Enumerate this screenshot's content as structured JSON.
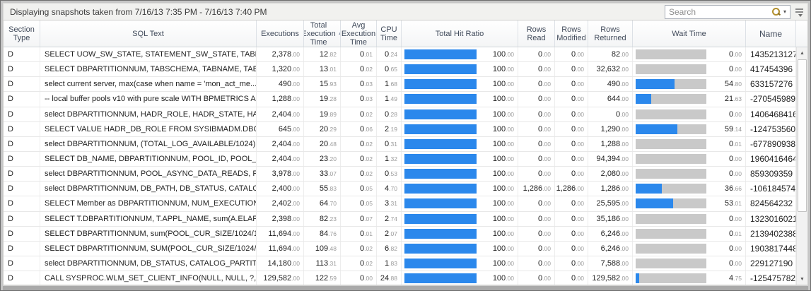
{
  "window": {
    "status_text": "Displaying snapshots taken from 7/16/13 7:35 PM - 7/16/13 7:40 PM"
  },
  "search": {
    "placeholder": "Search"
  },
  "colors": {
    "bar_blue": "#2b88ec",
    "bar_track_gray": "#c9c9c9",
    "header_text": "#404a5a"
  },
  "icons": {
    "search_magnifier": "magnifier-icon",
    "search_dropdown": "▾",
    "sort_ascending": "▲",
    "scroll_up": "▲",
    "scroll_down": "▼"
  },
  "table": {
    "columns": [
      {
        "key": "section_type",
        "label": "Section Type",
        "align": "left"
      },
      {
        "key": "sql_text",
        "label": "SQL Text",
        "align": "left"
      },
      {
        "key": "executions",
        "label": "Executions",
        "align": "right",
        "numeric": true
      },
      {
        "key": "total_execution_time",
        "label": "Total Execution Time",
        "align": "right",
        "numeric": true,
        "sort": "asc"
      },
      {
        "key": "avg_execution_time",
        "label": "Avg Execution Time",
        "align": "right",
        "numeric": true
      },
      {
        "key": "cpu_time",
        "label": "CPU Time",
        "align": "right",
        "numeric": true
      },
      {
        "key": "total_hit_ratio",
        "label": "Total Hit Ratio",
        "type": "bar"
      },
      {
        "key": "rows_read",
        "label": "Rows Read",
        "align": "right",
        "numeric": true
      },
      {
        "key": "rows_modified",
        "label": "Rows Modified",
        "align": "right",
        "numeric": true
      },
      {
        "key": "rows_returned",
        "label": "Rows Returned",
        "align": "right",
        "numeric": true
      },
      {
        "key": "wait_time",
        "label": "Wait Time",
        "type": "bar"
      },
      {
        "key": "name",
        "label": "Name",
        "align": "left"
      }
    ],
    "rows": [
      {
        "section_type": "D",
        "sql_text": "SELECT UOW_SW_STATE, STATEMENT_SW_STATE, TABLE_...",
        "executions": "2,378.00",
        "total_execution_time": "12.82",
        "avg_execution_time": "0.01",
        "cpu_time": "0.24",
        "total_hit_ratio": "100.00",
        "rows_read": "0.00",
        "rows_modified": "0.00",
        "rows_returned": "82.00",
        "wait_time": "0.00",
        "name": "1435213127"
      },
      {
        "section_type": "D",
        "sql_text": "SELECT DBPARTITIONNUM, TABSCHEMA, TABNAME, TAB_T...",
        "executions": "1,320.00",
        "total_execution_time": "13.01",
        "avg_execution_time": "0.02",
        "cpu_time": "0.65",
        "total_hit_ratio": "100.00",
        "rows_read": "0.00",
        "rows_modified": "0.00",
        "rows_returned": "32,632.00",
        "wait_time": "0.00",
        "name": "417454396"
      },
      {
        "section_type": "D",
        "sql_text": "select current server, max(case when name = 'mon_act_me...",
        "executions": "490.00",
        "total_execution_time": "15.93",
        "avg_execution_time": "0.03",
        "cpu_time": "1.68",
        "total_hit_ratio": "100.00",
        "rows_read": "0.00",
        "rows_modified": "0.00",
        "rows_returned": "490.00",
        "wait_time": "54.80",
        "name": "633157276"
      },
      {
        "section_type": "D",
        "sql_text": "-- local buffer pools v10 with pure scale WITH BPMETRICS A...",
        "executions": "1,288.00",
        "total_execution_time": "19.28",
        "avg_execution_time": "0.03",
        "cpu_time": "1.49",
        "total_hit_ratio": "100.00",
        "rows_read": "0.00",
        "rows_modified": "0.00",
        "rows_returned": "644.00",
        "wait_time": "21.63",
        "name": "-270545989"
      },
      {
        "section_type": "D",
        "sql_text": "select DBPARTITIONNUM, HADR_ROLE, HADR_STATE, HAD...",
        "executions": "2,404.00",
        "total_execution_time": "19.89",
        "avg_execution_time": "0.02",
        "cpu_time": "0.28",
        "total_hit_ratio": "100.00",
        "rows_read": "0.00",
        "rows_modified": "0.00",
        "rows_returned": "0.00",
        "wait_time": "0.00",
        "name": "1406468416"
      },
      {
        "section_type": "D",
        "sql_text": "SELECT VALUE HADR_DB_ROLE FROM SYSIBMADM.DBCFG ...",
        "executions": "645.00",
        "total_execution_time": "20.29",
        "avg_execution_time": "0.06",
        "cpu_time": "2.19",
        "total_hit_ratio": "100.00",
        "rows_read": "0.00",
        "rows_modified": "0.00",
        "rows_returned": "1,290.00",
        "wait_time": "59.14",
        "name": "-1247535607"
      },
      {
        "section_type": "D",
        "sql_text": "select DBPARTITIONNUM, (TOTAL_LOG_AVAILABLE/1024) a...",
        "executions": "2,404.00",
        "total_execution_time": "20.48",
        "avg_execution_time": "0.02",
        "cpu_time": "0.31",
        "total_hit_ratio": "100.00",
        "rows_read": "0.00",
        "rows_modified": "0.00",
        "rows_returned": "1,288.00",
        "wait_time": "0.01",
        "name": "-677890938"
      },
      {
        "section_type": "D",
        "sql_text": "SELECT DB_NAME, DBPARTITIONNUM, POOL_ID, POOL_SE...",
        "executions": "2,404.00",
        "total_execution_time": "23.20",
        "avg_execution_time": "0.02",
        "cpu_time": "1.32",
        "total_hit_ratio": "100.00",
        "rows_read": "0.00",
        "rows_modified": "0.00",
        "rows_returned": "94,394.00",
        "wait_time": "0.00",
        "name": "1960416464"
      },
      {
        "section_type": "D",
        "sql_text": "select DBPARTITIONNUM, POOL_ASYNC_DATA_READS, PO...",
        "executions": "3,978.00",
        "total_execution_time": "33.07",
        "avg_execution_time": "0.02",
        "cpu_time": "0.53",
        "total_hit_ratio": "100.00",
        "rows_read": "0.00",
        "rows_modified": "0.00",
        "rows_returned": "2,080.00",
        "wait_time": "0.00",
        "name": "859309359"
      },
      {
        "section_type": "D",
        "sql_text": "select DBPARTITIONNUM, DB_PATH, DB_STATUS, CATALO...",
        "executions": "2,400.00",
        "total_execution_time": "55.83",
        "avg_execution_time": "0.05",
        "cpu_time": "4.70",
        "total_hit_ratio": "100.00",
        "rows_read": "1,286.00",
        "rows_modified": "1,286.00",
        "rows_returned": "1,286.00",
        "wait_time": "36.66",
        "name": "-1061845742"
      },
      {
        "section_type": "D",
        "sql_text": "SELECT Member as DBPARTITIONNUM, NUM_EXECUTIONS, ...",
        "executions": "2,402.00",
        "total_execution_time": "64.70",
        "avg_execution_time": "0.05",
        "cpu_time": "3.31",
        "total_hit_ratio": "100.00",
        "rows_read": "0.00",
        "rows_modified": "0.00",
        "rows_returned": "25,595.00",
        "wait_time": "53.01",
        "name": "824564232"
      },
      {
        "section_type": "D",
        "sql_text": "SELECT T.DBPARTITIONNUM, T.APPL_NAME, sum(A.ELAPS...",
        "executions": "2,398.00",
        "total_execution_time": "82.23",
        "avg_execution_time": "0.07",
        "cpu_time": "2.74",
        "total_hit_ratio": "100.00",
        "rows_read": "0.00",
        "rows_modified": "0.00",
        "rows_returned": "35,186.00",
        "wait_time": "0.00",
        "name": "1323016021"
      },
      {
        "section_type": "D",
        "sql_text": "SELECT DBPARTITIONNUM, sum(POOL_CUR_SIZE/1024/10...",
        "executions": "11,694.00",
        "total_execution_time": "84.76",
        "avg_execution_time": "0.01",
        "cpu_time": "2.07",
        "total_hit_ratio": "100.00",
        "rows_read": "0.00",
        "rows_modified": "0.00",
        "rows_returned": "6,246.00",
        "wait_time": "0.01",
        "name": "2139402388"
      },
      {
        "section_type": "D",
        "sql_text": "SELECT DBPARTITIONNUM, SUM(POOL_CUR_SIZE/1024/10...",
        "executions": "11,694.00",
        "total_execution_time": "109.48",
        "avg_execution_time": "0.02",
        "cpu_time": "6.82",
        "total_hit_ratio": "100.00",
        "rows_read": "0.00",
        "rows_modified": "0.00",
        "rows_returned": "6,246.00",
        "wait_time": "0.00",
        "name": "1903817448"
      },
      {
        "section_type": "D",
        "sql_text": "select DBPARTITIONNUM, DB_STATUS, CATALOG_PARTITI...",
        "executions": "14,180.00",
        "total_execution_time": "113.31",
        "avg_execution_time": "0.02",
        "cpu_time": "1.83",
        "total_hit_ratio": "100.00",
        "rows_read": "0.00",
        "rows_modified": "0.00",
        "rows_returned": "7,588.00",
        "wait_time": "0.00",
        "name": "229127190"
      },
      {
        "section_type": "D",
        "sql_text": "CALL SYSPROC.WLM_SET_CLIENT_INFO(NULL, NULL, ?, NU...",
        "executions": "129,582.00",
        "total_execution_time": "122.59",
        "avg_execution_time": "0.00",
        "cpu_time": "24.88",
        "total_hit_ratio": "100.00",
        "rows_read": "0.00",
        "rows_modified": "0.00",
        "rows_returned": "129,582.00",
        "wait_time": "4.75",
        "name": "-1254757823"
      }
    ]
  }
}
